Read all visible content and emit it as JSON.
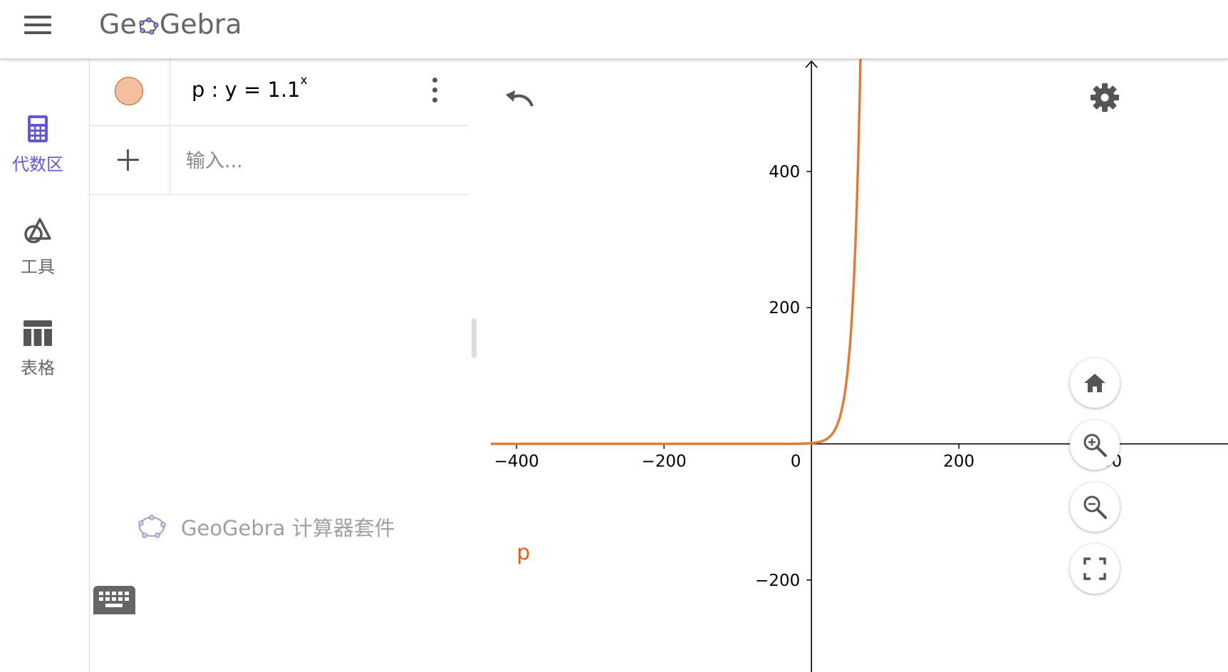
{
  "header": {
    "logo_before": "Ge",
    "logo_after": "Gebra"
  },
  "sidenav": {
    "items": [
      {
        "label": "代数区",
        "icon": "calculator-icon",
        "active": true
      },
      {
        "label": "工具",
        "icon": "shapes-icon",
        "active": false
      },
      {
        "label": "表格",
        "icon": "table-icon",
        "active": false
      }
    ],
    "active_color": "#6557d2"
  },
  "algebra": {
    "entries": [
      {
        "formula_prefix": "p :  y = 1.1",
        "exponent": "x",
        "color": "#f2bf9f"
      }
    ],
    "input_placeholder": "输入...",
    "brand": "GeoGebra 计算器套件"
  },
  "chart_data": {
    "type": "line",
    "function": "y = 1.1^x",
    "series": [
      {
        "name": "p",
        "color": "#e07b39"
      }
    ],
    "x_ticks": [
      "−400",
      "−200",
      "0",
      "200",
      "400"
    ],
    "y_ticks": [
      "400",
      "200",
      "−200"
    ],
    "xlim": [
      -435,
      565
    ],
    "ylim": [
      -335,
      565
    ],
    "grid": false
  }
}
